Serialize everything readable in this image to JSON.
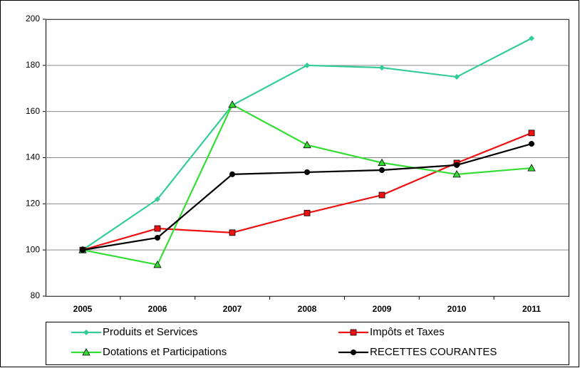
{
  "chart_data": {
    "type": "line",
    "categories": [
      "2005",
      "2006",
      "2007",
      "2008",
      "2009",
      "2010",
      "2011"
    ],
    "series": [
      {
        "name": "Produits et Services",
        "color": "#33cc99",
        "marker": "diamond",
        "values": [
          100,
          122,
          162.7,
          180,
          179,
          175,
          191.7
        ]
      },
      {
        "name": "Impôts et Taxes",
        "color": "#ee1111",
        "marker": "square",
        "values": [
          100,
          109.3,
          107.5,
          116,
          123.8,
          137.7,
          150.7
        ]
      },
      {
        "name": "Dotations et Participations",
        "color": "#33dd33",
        "marker": "triangle",
        "values": [
          100,
          93.6,
          163,
          145.5,
          137.8,
          132.8,
          135.5
        ]
      },
      {
        "name": "RECETTES COURANTES",
        "color": "#000000",
        "marker": "circle",
        "values": [
          100,
          105.3,
          132.8,
          133.7,
          134.6,
          136.8,
          146
        ]
      }
    ],
    "ylim": [
      80,
      200
    ],
    "yticks": [
      80,
      100,
      120,
      140,
      160,
      180,
      200
    ],
    "grid": true,
    "legend": "bottom"
  }
}
